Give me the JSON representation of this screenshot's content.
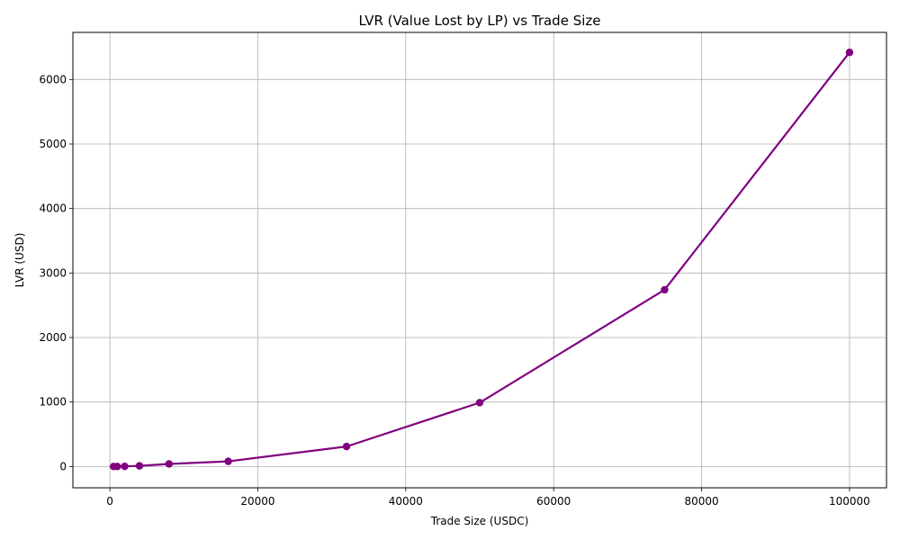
{
  "chart_data": {
    "type": "line",
    "title": "LVR (Value Lost by LP) vs Trade Size",
    "xlabel": "Trade Size (USDC)",
    "ylabel": "LVR (USD)",
    "xlim": [
      -5000,
      105000
    ],
    "ylim": [
      -330,
      6730
    ],
    "xticks": [
      0,
      20000,
      40000,
      60000,
      80000,
      100000
    ],
    "yticks": [
      0,
      1000,
      2000,
      3000,
      4000,
      5000,
      6000
    ],
    "grid": true,
    "series": [
      {
        "color": "#800080",
        "marker": "circle",
        "x": [
          500,
          1000,
          2000,
          4000,
          8000,
          16000,
          32000,
          50000,
          75000,
          100000
        ],
        "y": [
          0.16,
          0.64,
          2.5,
          10,
          40,
          80,
          310,
          990,
          2740,
          6420
        ]
      }
    ]
  }
}
